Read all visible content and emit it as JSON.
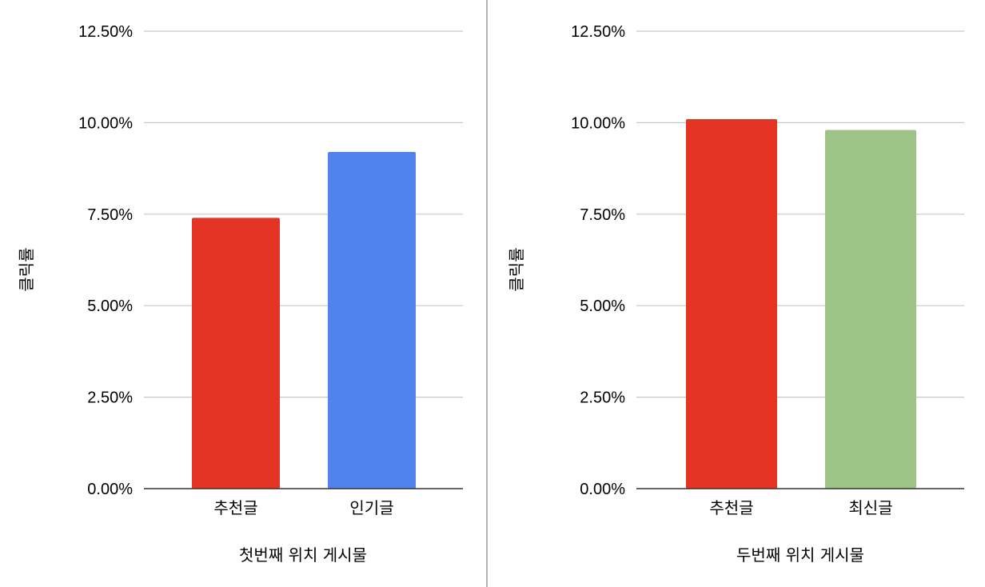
{
  "chart_data": [
    {
      "type": "bar",
      "title": "",
      "xlabel": "첫번째 위치 게시물",
      "ylabel": "클릭률",
      "ylim": [
        0,
        12.5
      ],
      "yticks": [
        "0.00%",
        "2.50%",
        "5.00%",
        "7.50%",
        "10.00%",
        "12.50%"
      ],
      "grid": true,
      "categories": [
        "추천글",
        "인기글"
      ],
      "values": [
        7.4,
        9.2
      ],
      "colors": [
        "#e63424",
        "#5083ec"
      ]
    },
    {
      "type": "bar",
      "title": "",
      "xlabel": "두번째 위치 게시물",
      "ylabel": "클릭률",
      "ylim": [
        0,
        12.5
      ],
      "yticks": [
        "0.00%",
        "2.50%",
        "5.00%",
        "7.50%",
        "10.00%",
        "12.50%"
      ],
      "grid": true,
      "categories": [
        "추천글",
        "최신글"
      ],
      "values": [
        10.1,
        9.8
      ],
      "colors": [
        "#e63424",
        "#9dc386"
      ]
    }
  ]
}
